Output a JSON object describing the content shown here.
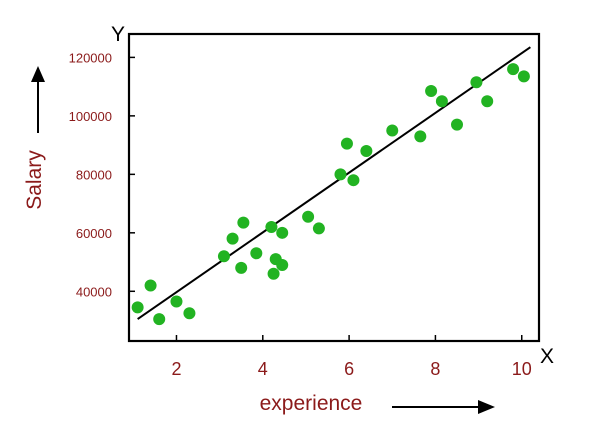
{
  "chart_data": {
    "type": "scatter",
    "xlabel": "experience",
    "ylabel": "Salary",
    "x_axis_letter": "X",
    "y_axis_letter": "Y",
    "x_ticks": [
      "2",
      "4",
      "6",
      "8",
      "10"
    ],
    "y_ticks": [
      "40000",
      "60000",
      "80000",
      "100000",
      "120000"
    ],
    "xlim": [
      0.9,
      10.4
    ],
    "ylim": [
      23000,
      128000
    ],
    "grid": false,
    "point_color": "#22b322",
    "line_color": "#000000",
    "label_color": "#8b1a1a",
    "series": [
      {
        "x": [
          1.1,
          1.4,
          1.6,
          2.0,
          2.3,
          3.1,
          3.3,
          3.5,
          3.55,
          3.85,
          4.2,
          4.25,
          4.3,
          4.45,
          4.45,
          5.05,
          5.3,
          5.8,
          5.95,
          6.1,
          6.4,
          7.0,
          7.65,
          7.9,
          8.15,
          8.5,
          8.95,
          9.2,
          9.8,
          10.05
        ],
        "y": [
          34500,
          42000,
          30500,
          36500,
          32500,
          52000,
          58000,
          48000,
          63500,
          53000,
          62000,
          46000,
          51000,
          49000,
          60000,
          65500,
          61500,
          80000,
          90500,
          78000,
          88000,
          95000,
          93000,
          108500,
          105000,
          97000,
          111500,
          105000,
          116000,
          113500
        ]
      }
    ],
    "trend_line": {
      "x": [
        1.1,
        10.2
      ],
      "y": [
        30500,
        123500
      ]
    }
  }
}
